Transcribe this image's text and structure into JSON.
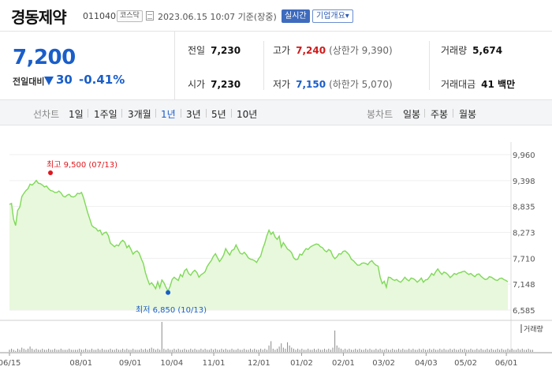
{
  "header": {
    "company_name": "경동제약",
    "stock_code": "011040",
    "market_badge": "코스닥",
    "date_text": "2023.06.15 10:07 기준(장중)",
    "realtime_label": "실시간",
    "overview_label": "기업개요▾"
  },
  "price": {
    "current": "7,200",
    "change_label": "전일대비",
    "change_value": "30",
    "change_pct": "-0.41%",
    "direction": "down",
    "color": "#1a5ec9"
  },
  "stats": {
    "prev_close": {
      "label": "전일",
      "value": "7,230"
    },
    "high": {
      "label": "고가",
      "value": "7,240",
      "sub": "(상한가 9,390)"
    },
    "volume": {
      "label": "거래량",
      "value": "5,674"
    },
    "open": {
      "label": "시가",
      "value": "7,230"
    },
    "low": {
      "label": "저가",
      "value": "7,150",
      "sub": "(하한가 5,070)"
    },
    "trade_amount": {
      "label": "거래대금",
      "value": "41 백만"
    }
  },
  "tabs": {
    "line_label": "선차트",
    "line_tabs": [
      "1일",
      "1주일",
      "3개월",
      "1년",
      "3년",
      "5년",
      "10년"
    ],
    "active_line_tab": "1년",
    "candle_label": "봉차트",
    "candle_tabs": [
      "일봉",
      "주봉",
      "월봉"
    ]
  },
  "chart_data": {
    "type": "area",
    "y_ticks": [
      "9,960",
      "9,398",
      "8,835",
      "8,273",
      "7,710",
      "7,148",
      "6,585"
    ],
    "ylim": [
      6585,
      9960
    ],
    "x_ticks": [
      "06/15",
      "08/01",
      "09/01",
      "10/04",
      "11/01",
      "12/01",
      "01/02",
      "02/01",
      "03/02",
      "04/03",
      "05/02",
      "06/01"
    ],
    "high_label": "최고 9,500 (07/13)",
    "low_label": "최저 6,850 (10/13)",
    "volume_label": "거래량",
    "line_color": "#7ed957",
    "fill_color": "#e8f8dc",
    "series": [
      {
        "values": [
          8880,
          8900,
          8560,
          8420,
          8750,
          8820,
          9050,
          9120,
          9180,
          9220,
          9320,
          9300,
          9340,
          9400,
          9340,
          9330,
          9300,
          9260,
          9280,
          9220,
          9180,
          9170,
          9140,
          9140,
          9170,
          9130,
          9060,
          9040,
          9080,
          9100,
          9050,
          9040,
          9060,
          9120,
          9110,
          9140,
          9020,
          8860,
          8700,
          8560,
          8420,
          8380,
          8360,
          8300,
          8320,
          8220,
          8260,
          8280,
          8200,
          8040,
          8000,
          7960,
          8000,
          7980,
          8060,
          8100,
          8060,
          7940,
          7990,
          7900,
          7800,
          7850,
          7870,
          7820,
          7700,
          7600,
          7400,
          7260,
          7140,
          7180,
          7120,
          7050,
          7200,
          7070,
          7240,
          7180,
          7080,
          7000,
          7100,
          7250,
          7300,
          7260,
          7230,
          7360,
          7310,
          7440,
          7480,
          7380,
          7340,
          7410,
          7450,
          7400,
          7300,
          7350,
          7380,
          7420,
          7530,
          7600,
          7660,
          7750,
          7810,
          7720,
          7640,
          7700,
          7780,
          7920,
          7840,
          7780,
          7880,
          7900,
          8000,
          7910,
          7820,
          7800,
          7840,
          7790,
          7720,
          7690,
          7680,
          7660,
          7620,
          7700,
          7760,
          7920,
          8040,
          8200,
          8320,
          8230,
          8280,
          8170,
          8120,
          8190,
          7950,
          8050,
          7980,
          7910,
          7880,
          7830,
          7720,
          7680,
          7690,
          7800,
          7780,
          7860,
          7920,
          7900,
          7950,
          7980,
          8000,
          8020,
          8010,
          7960,
          7940,
          7880,
          7850,
          7900,
          7870,
          7760,
          7700,
          7740,
          7810,
          7800,
          7860,
          7870,
          7830,
          7780,
          7690,
          7660,
          7610,
          7560,
          7560,
          7600,
          7610,
          7600,
          7570,
          7630,
          7660,
          7600,
          7560,
          7540,
          7300,
          7160,
          7210,
          7080,
          7300,
          7290,
          7250,
          7230,
          7250,
          7210,
          7190,
          7240,
          7300,
          7250,
          7220,
          7280,
          7270,
          7240,
          7190,
          7230,
          7280,
          7190,
          7240,
          7250,
          7310,
          7380,
          7340,
          7420,
          7480,
          7410,
          7360,
          7410,
          7390,
          7350,
          7290,
          7330,
          7380,
          7360,
          7390,
          7400,
          7420,
          7430,
          7390,
          7360,
          7380,
          7340,
          7310,
          7360,
          7370,
          7320,
          7280,
          7250,
          7260,
          7310,
          7300,
          7270,
          7240,
          7230,
          7270,
          7280,
          7250,
          7230,
          7200
        ]
      },
      {
        "values": [
          2,
          3,
          2,
          1,
          3,
          2,
          4,
          3,
          2,
          3,
          5,
          3,
          2,
          3,
          2,
          2,
          3,
          2,
          2,
          3,
          2,
          2,
          3,
          2,
          2,
          3,
          2,
          2,
          2,
          3,
          2,
          2,
          2,
          2,
          3,
          2,
          2,
          3,
          2,
          2,
          3,
          2,
          2,
          3,
          2,
          3,
          2,
          2,
          2,
          3,
          2,
          2,
          3,
          2,
          2,
          3,
          2,
          3,
          2,
          2,
          3,
          2,
          2,
          2,
          3,
          2,
          3,
          2,
          3,
          4,
          3,
          2,
          3,
          2,
          28,
          3,
          2,
          3,
          2,
          2,
          3,
          2,
          3,
          2,
          2,
          3,
          2,
          2,
          3,
          2,
          3,
          2,
          2,
          3,
          2,
          3,
          2,
          2,
          3,
          2,
          3,
          2,
          2,
          3,
          2,
          3,
          2,
          2,
          3,
          2,
          2,
          3,
          2,
          2,
          3,
          2,
          2,
          3,
          2,
          3,
          2,
          2,
          3,
          2,
          3,
          2,
          6,
          10,
          3,
          2,
          3,
          5,
          8,
          4,
          3,
          9,
          6,
          4,
          3,
          2,
          3,
          2,
          3,
          2,
          2,
          3,
          2,
          2,
          3,
          2,
          3,
          2,
          2,
          3,
          2,
          3,
          2,
          4,
          20,
          6,
          4,
          3,
          2,
          3,
          2,
          3,
          2,
          2,
          3,
          2,
          3,
          2,
          2,
          3,
          2,
          3,
          2,
          2,
          3,
          2,
          3,
          2,
          2,
          3,
          2,
          2,
          3,
          2,
          2,
          3,
          2,
          3,
          2,
          2,
          3,
          2,
          3,
          2,
          2,
          3,
          2,
          3,
          2,
          2,
          3,
          2,
          3,
          2,
          2,
          3,
          2,
          3,
          2,
          2,
          3,
          2,
          3,
          2,
          2,
          3,
          2,
          3,
          2,
          2,
          3,
          2,
          2,
          3,
          2,
          3,
          2,
          2,
          3,
          2,
          3,
          2,
          2,
          3,
          2,
          3,
          2,
          2,
          3,
          2,
          3,
          2,
          2,
          3,
          2,
          3,
          2,
          2,
          3,
          2,
          2
        ]
      }
    ]
  }
}
